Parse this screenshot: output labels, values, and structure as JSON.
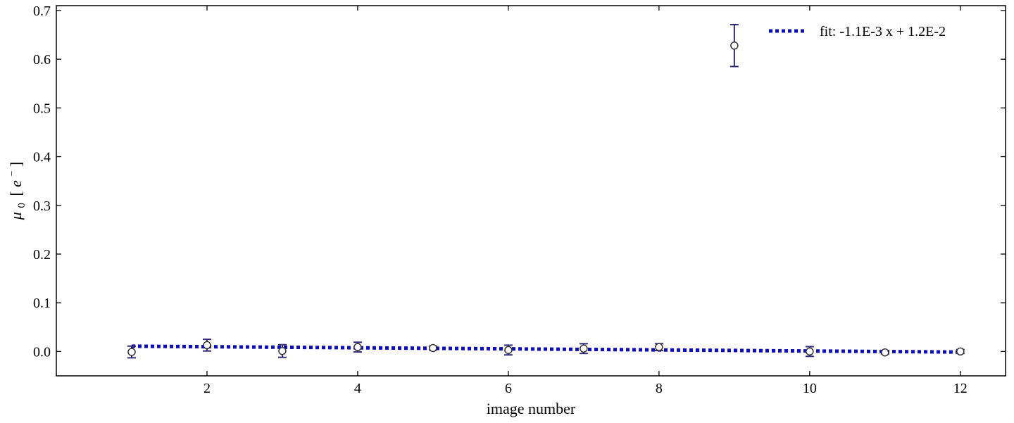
{
  "chart_data": {
    "type": "scatter",
    "xlabel": "image number",
    "ylabel_main": "μ",
    "ylabel_sub": "0",
    "ylabel_unit_open": "[",
    "ylabel_unit": "e",
    "ylabel_unit_sup": "−",
    "ylabel_unit_close": "]",
    "xlim": [
      0.0,
      12.6
    ],
    "ylim": [
      -0.05,
      0.71
    ],
    "xticks": [
      2,
      4,
      6,
      8,
      10,
      12
    ],
    "xtick_labels": [
      "2",
      "4",
      "6",
      "8",
      "10",
      "12"
    ],
    "yticks": [
      0.0,
      0.1,
      0.2,
      0.3,
      0.4,
      0.5,
      0.6,
      0.7
    ],
    "ytick_labels": [
      "0.0",
      "0.1",
      "0.2",
      "0.3",
      "0.4",
      "0.5",
      "0.6",
      "0.7"
    ],
    "grid": false,
    "legend_position": "top-right",
    "series": [
      {
        "kind": "errorbar",
        "color": "#2e2a78",
        "points": [
          {
            "x": 1,
            "y": -0.001,
            "err": 0.012
          },
          {
            "x": 2,
            "y": 0.013,
            "err": 0.012
          },
          {
            "x": 3,
            "y": 0.001,
            "err": 0.013
          },
          {
            "x": 4,
            "y": 0.009,
            "err": 0.01
          },
          {
            "x": 5,
            "y": 0.007,
            "err": 0.004
          },
          {
            "x": 6,
            "y": 0.003,
            "err": 0.01
          },
          {
            "x": 7,
            "y": 0.006,
            "err": 0.01
          },
          {
            "x": 8,
            "y": 0.009,
            "err": 0.007
          },
          {
            "x": 9,
            "y": 0.628,
            "err": 0.043
          },
          {
            "x": 10,
            "y": 0.0,
            "err": 0.01
          },
          {
            "x": 11,
            "y": -0.002,
            "err": 0.003
          },
          {
            "x": 12,
            "y": 0.0,
            "err": 0.004
          }
        ]
      },
      {
        "kind": "fit-line",
        "name": "fit: -1.1E-3 x + 1.2E-2",
        "color": "#0a0acc",
        "slope": -0.0011,
        "intercept": 0.012,
        "x_range": [
          1,
          12
        ]
      }
    ]
  }
}
